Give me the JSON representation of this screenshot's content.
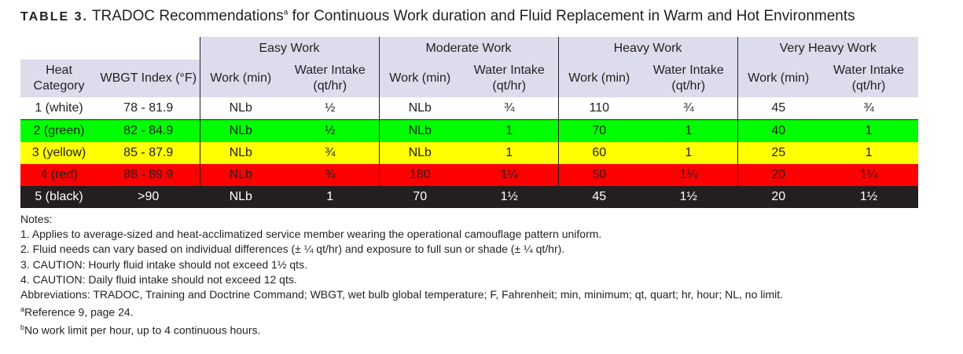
{
  "title": {
    "label": "TABLE 3.",
    "text_before": "TRADOC Recommendations",
    "sup": "a",
    "text_after": " for Continuous Work duration and Fluid Replacement in Warm and Hot Environments"
  },
  "groups": [
    "Easy Work",
    "Moderate Work",
    "Heavy Work",
    "Very Heavy Work"
  ],
  "col_headers": {
    "heat_category": "Heat Category",
    "wbgt_index": "WBGT Index (°F)",
    "work": "Work (min)",
    "water": "Water Intake (qt/hr)"
  },
  "rows": [
    {
      "cat": "1 (white)",
      "wbgt": "78 - 81.9",
      "cells": [
        "NLb",
        "½",
        "NLb",
        "¾",
        "110",
        "¾",
        "45",
        "¾"
      ]
    },
    {
      "cat": "2 (green)",
      "wbgt": "82 - 84.9",
      "cells": [
        "NLb",
        "½",
        "NLb",
        "1",
        "70",
        "1",
        "40",
        "1"
      ]
    },
    {
      "cat": "3 (yellow)",
      "wbgt": "85 - 87.9",
      "cells": [
        "NLb",
        "¾",
        "NLb",
        "1",
        "60",
        "1",
        "25",
        "1"
      ]
    },
    {
      "cat": "4 (red)",
      "wbgt": "88 - 89.9",
      "cells": [
        "NLb",
        "¾",
        "180",
        "1¼",
        "50",
        "1¼",
        "20",
        "1¼"
      ]
    },
    {
      "cat": "5 (black)",
      "wbgt": ">90",
      "cells": [
        "NLb",
        "1",
        "70",
        "1½",
        "45",
        "1½",
        "20",
        "1½"
      ]
    }
  ],
  "row_colors": [
    "#ffffff",
    "#00ff00",
    "#ffff00",
    "#ff0000",
    "#231f20"
  ],
  "notes": {
    "heading": "Notes:",
    "n1": "1. Applies to average-sized and heat-acclimatized service member wearing the operational camouflage pattern uniform.",
    "n2": "2. Fluid needs can vary based on individual differences (± ¼ qt/hr) and exposure to full sun or shade (± ¼ qt/hr).",
    "n3": "3. CAUTION: Hourly fluid intake should not exceed 1½ qts.",
    "n4": "4. CAUTION: Daily fluid intake should not exceed 12 qts.",
    "abbr": "Abbreviations: TRADOC, Training and Doctrine Command; WBGT, wet bulb global temperature; F, Fahrenheit; min, minimum; qt, quart; hr, hour; NL, no limit.",
    "fa_sup": "a",
    "fa_text": "Reference 9, page 24.",
    "fb_sup": "b",
    "fb_text": "No work limit per hour, up to 4 continuous hours."
  }
}
